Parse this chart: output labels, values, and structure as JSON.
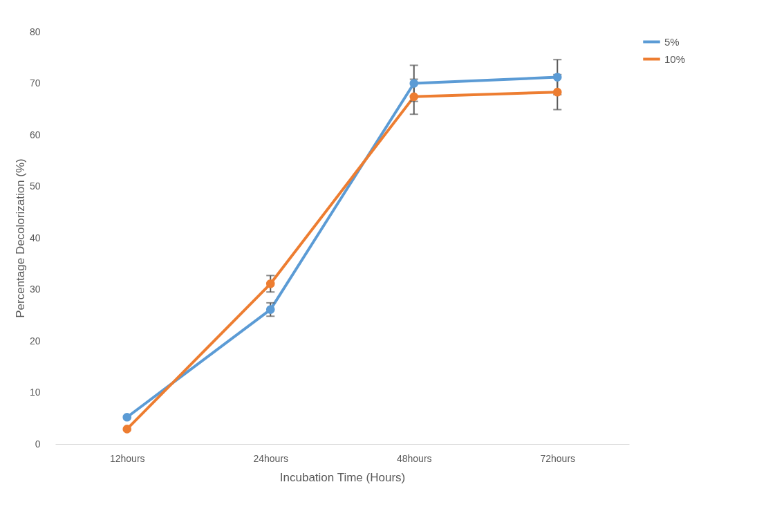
{
  "chart_data": {
    "type": "line",
    "xlabel": "Incubation Time (Hours)",
    "ylabel": "Percentage Decolorization (%)",
    "categories": [
      "12hours",
      "24hours",
      "48hours",
      "72hours"
    ],
    "series": [
      {
        "name": "5%",
        "color": "#5b9bd5",
        "values": [
          5.2,
          26.1,
          70.0,
          71.2
        ],
        "errors": [
          null,
          1.3,
          3.5,
          3.4
        ]
      },
      {
        "name": "10%",
        "color": "#ed7d31",
        "values": [
          2.9,
          31.1,
          67.4,
          68.3
        ],
        "errors": [
          null,
          1.6,
          3.4,
          3.4
        ]
      }
    ],
    "ylim": [
      0,
      80
    ],
    "yticks": [
      0,
      10,
      20,
      30,
      40,
      50,
      60,
      70,
      80
    ],
    "grid": false,
    "legend": "right",
    "marker": "circle",
    "line_style": "solid"
  }
}
